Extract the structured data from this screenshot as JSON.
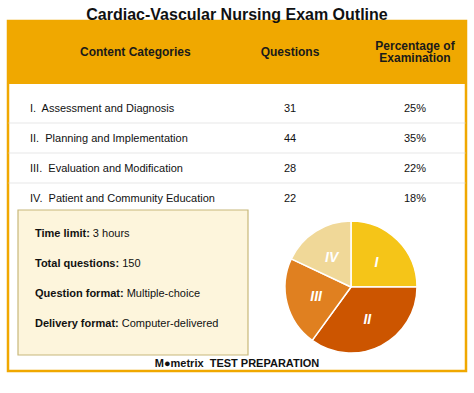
{
  "chart_data": {
    "type": "pie",
    "title": "Cardiac-Vascular Nursing Exam Outline",
    "categories": [
      "I",
      "II",
      "III",
      "IV"
    ],
    "values": [
      25,
      35,
      22,
      18
    ],
    "colors": [
      "#f5c518",
      "#cc5500",
      "#e08020",
      "#f0d898"
    ],
    "table": {
      "headers": [
        "Content Categories",
        "Questions",
        "Percentage of\nExamination"
      ],
      "rows": [
        [
          "I.  Assessment and Diagnosis",
          "31",
          "25%"
        ],
        [
          "II.  Planning and Implementation",
          "44",
          "35%"
        ],
        [
          "III.  Evaluation and Modification",
          "28",
          "22%"
        ],
        [
          "IV.  Patient and Community Education",
          "22",
          "18%"
        ]
      ]
    },
    "annotations": [
      [
        "Time limit:",
        "3 hours"
      ],
      [
        "Total questions:",
        "150"
      ],
      [
        "Question format:",
        "Multiple-choice"
      ],
      [
        "Delivery format:",
        "Computer-delivered"
      ]
    ],
    "footer": "M●metrix  TEST PREPARATION"
  }
}
